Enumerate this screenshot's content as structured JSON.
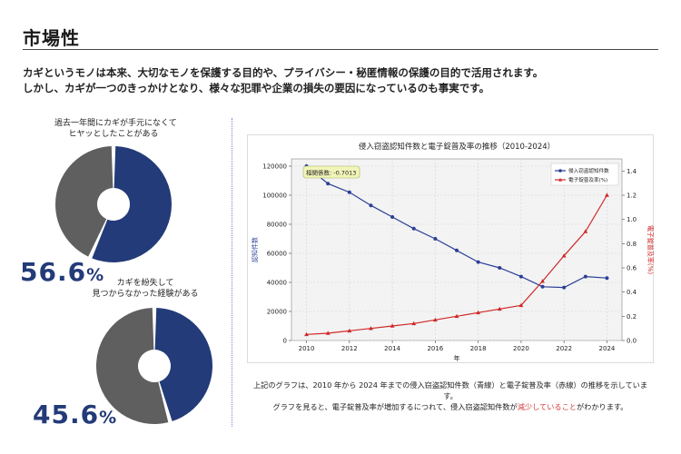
{
  "page": {
    "title": "市場性",
    "intro_line1": "カギというモノは本来、大切なモノを保護する目的や、プライバシー・秘匿情報の保護の目的で活用されます。",
    "intro_line2": "しかし、カギが一つのきっかけとなり、様々な犯罪や企業の損失の要因になっているのも事実です。"
  },
  "stats": [
    {
      "caption_line1": "過去一年間にカギが手元になくて",
      "caption_line2": "ヒヤッとしたことがある",
      "value": 56.6,
      "value_text": "56.6",
      "unit": "%",
      "color_primary": "#233b78",
      "color_rest": "#5f5f5f"
    },
    {
      "caption_line1": "カギを紛失して",
      "caption_line2": "見つからなかった経験がある",
      "value": 45.6,
      "value_text": "45.6",
      "unit": "%",
      "color_primary": "#233b78",
      "color_rest": "#5f5f5f"
    }
  ],
  "chart_data": {
    "type": "line",
    "title": "侵入窃盗認知件数と電子錠普及率の推移（2010-2024）",
    "xlabel": "年",
    "ylabel_left": "認知件数",
    "ylabel_right": "電子錠普及率(%)",
    "x": [
      2010,
      2011,
      2012,
      2013,
      2014,
      2015,
      2016,
      2017,
      2018,
      2019,
      2020,
      2021,
      2022,
      2023,
      2024
    ],
    "x_ticks": [
      2010,
      2012,
      2014,
      2016,
      2018,
      2020,
      2022,
      2024
    ],
    "ylim_left": [
      0,
      125000
    ],
    "y_ticks_left": [
      0,
      20000,
      40000,
      60000,
      80000,
      100000,
      120000
    ],
    "ylim_right": [
      0,
      1.5
    ],
    "y_ticks_right": [
      0.0,
      0.2,
      0.4,
      0.6,
      0.8,
      1.0,
      1.2,
      1.4
    ],
    "grid": true,
    "legend_position": "top-right",
    "annotation": "相関係数: -0.7013",
    "series": [
      {
        "name": "侵入窃盗認知件数",
        "axis": "left",
        "color": "#2b3f96",
        "marker": "circle",
        "values": [
          120000,
          108000,
          102000,
          93000,
          85000,
          77000,
          70000,
          62000,
          54000,
          50000,
          44000,
          37000,
          36500,
          44000,
          43000
        ]
      },
      {
        "name": "電子錠普及率(%)",
        "axis": "right",
        "color": "#d02828",
        "marker": "triangle",
        "values": [
          0.05,
          0.06,
          0.08,
          0.1,
          0.12,
          0.14,
          0.17,
          0.2,
          0.23,
          0.26,
          0.29,
          0.49,
          0.7,
          0.9,
          1.2
        ]
      }
    ]
  },
  "note": {
    "line1": "上記のグラフは、2010 年から 2024 年までの侵入窃盗認知件数（青線）と電子錠普及率（赤線）の推移を示しています。",
    "line2_pre": "グラフを見ると、電子錠普及率が増加するにつれて、侵入窃盗認知件数が",
    "line2_hl": "減少していること",
    "line2_post": "がわかります。"
  }
}
